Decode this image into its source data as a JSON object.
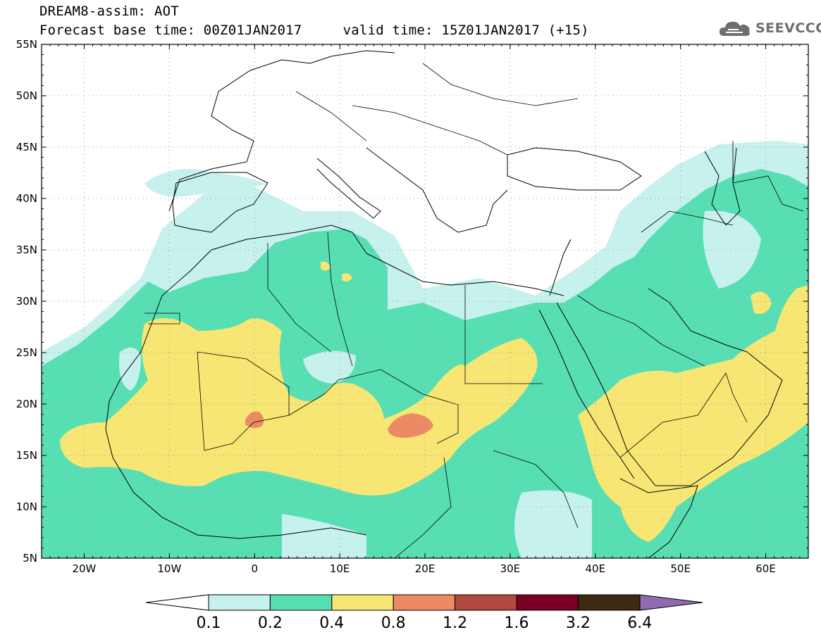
{
  "header": {
    "title": "DREAM8-assim: AOT",
    "subtitle_base": "Forecast base time: 00Z01JAN2017",
    "subtitle_valid": "valid time: 15Z01JAN2017 (+15)"
  },
  "logo": {
    "text": "SEEVCCC",
    "icon": "cloud-icon"
  },
  "map": {
    "projection": "lat-lon",
    "lon_range": [
      -25,
      65
    ],
    "lat_range": [
      5,
      55
    ],
    "lat_ticks": [
      "55N",
      "50N",
      "45N",
      "40N",
      "35N",
      "30N",
      "25N",
      "20N",
      "15N",
      "10N",
      "5N"
    ],
    "lon_ticks": [
      "20W",
      "10W",
      "0",
      "10E",
      "20E",
      "30E",
      "40E",
      "50E",
      "60E"
    ],
    "grid": "dotted"
  },
  "colorbar": {
    "levels": [
      "0.1",
      "0.2",
      "0.4",
      "0.8",
      "1.2",
      "1.6",
      "3.2",
      "6.4"
    ],
    "colors": [
      "#c6f1ec",
      "#57dfb3",
      "#f7e674",
      "#ec8a63",
      "#b04a3e",
      "#7a0024",
      "#3d2a12",
      "#8f6bb0"
    ],
    "below_color": "#ffffff"
  }
}
